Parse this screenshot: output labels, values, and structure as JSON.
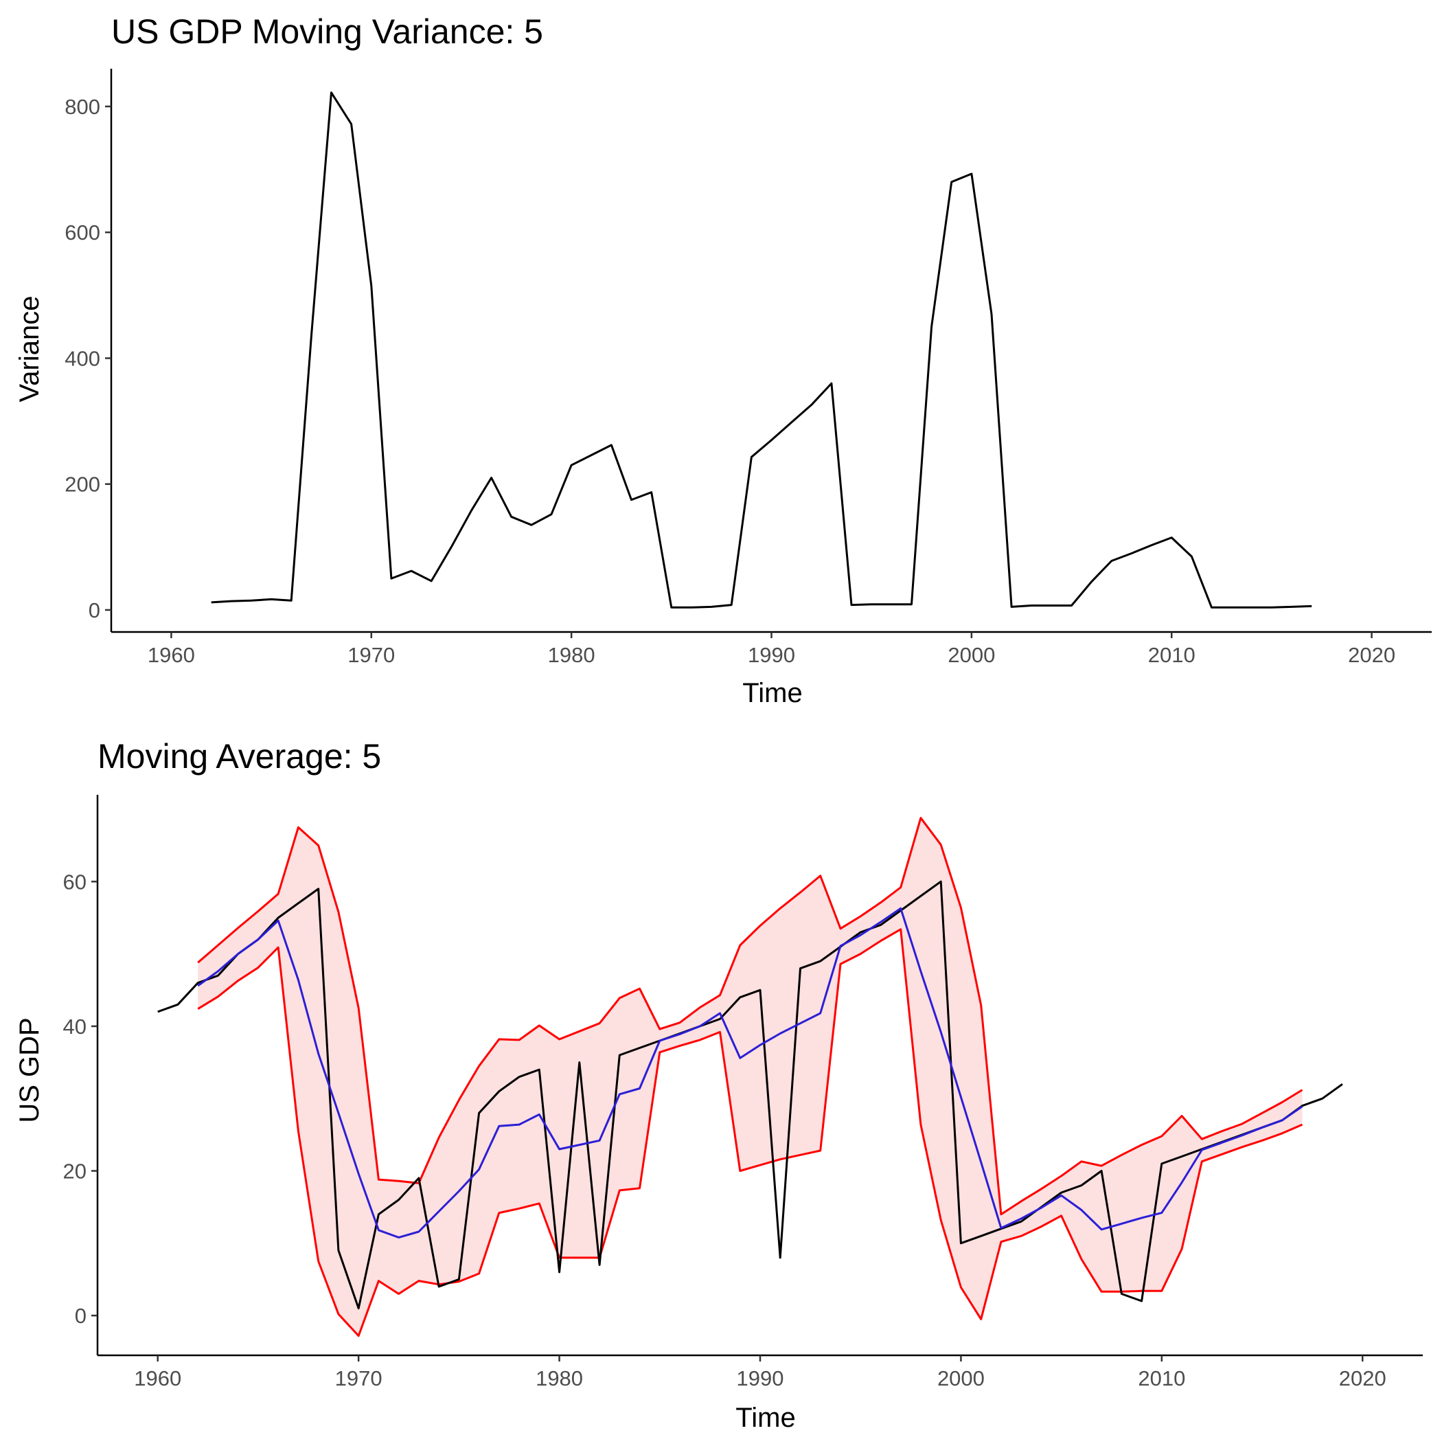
{
  "chart_data": [
    {
      "type": "line",
      "title": "US GDP Moving Variance: 5",
      "xlabel": "Time",
      "ylabel": "Variance",
      "xlim": [
        1957,
        2023
      ],
      "ylim": [
        -35,
        860
      ],
      "xticks": [
        1960,
        1970,
        1980,
        1990,
        2000,
        2010,
        2020
      ],
      "yticks": [
        0,
        200,
        400,
        600,
        800
      ],
      "grid": false,
      "series": [
        {
          "color": "#000000",
          "x": [
            1962,
            1963,
            1964,
            1965,
            1966,
            1967,
            1968,
            1969,
            1970,
            1971,
            1972,
            1973,
            1974,
            1975,
            1976,
            1977,
            1978,
            1979,
            1980,
            1981,
            1982,
            1983,
            1984,
            1985,
            1986,
            1987,
            1988,
            1989,
            1990,
            1991,
            1992,
            1993,
            1994,
            1995,
            1996,
            1997,
            1998,
            1999,
            2000,
            2001,
            2002,
            2003,
            2004,
            2005,
            2006,
            2007,
            2008,
            2009,
            2010,
            2011,
            2012,
            2013,
            2014,
            2015,
            2016,
            2017
          ],
          "y": [
            12,
            14,
            15,
            17,
            15,
            435,
            822,
            772,
            515,
            50,
            62,
            46,
            100,
            158,
            210,
            148,
            135,
            152,
            230,
            246,
            262,
            175,
            187,
            4,
            4,
            5,
            8,
            243,
            270,
            298,
            326,
            360,
            8,
            9,
            9,
            9,
            450,
            680,
            693,
            470,
            5,
            7,
            7,
            7,
            45,
            78,
            90,
            103,
            115,
            85,
            4,
            4,
            4,
            4,
            5,
            6
          ]
        }
      ]
    },
    {
      "type": "line",
      "title": "Moving Average: 5",
      "xlabel": "Time",
      "ylabel": "US GDP",
      "xlim": [
        1957,
        2023
      ],
      "ylim": [
        -5.5,
        72
      ],
      "xticks": [
        1960,
        1970,
        1980,
        1990,
        2000,
        2010,
        2020
      ],
      "yticks": [
        0,
        20,
        40,
        60
      ],
      "grid": false,
      "band": {
        "fill": "#fde0e0",
        "stroke": "#ff0000",
        "x": [
          1962,
          1963,
          1964,
          1965,
          1966,
          1967,
          1968,
          1969,
          1970,
          1971,
          1972,
          1973,
          1974,
          1975,
          1976,
          1977,
          1978,
          1979,
          1980,
          1981,
          1982,
          1983,
          1984,
          1985,
          1986,
          1987,
          1988,
          1989,
          1990,
          1991,
          1992,
          1993,
          1994,
          1995,
          1996,
          1997,
          1998,
          1999,
          2000,
          2001,
          2002,
          2003,
          2004,
          2005,
          2006,
          2007,
          2008,
          2009,
          2010,
          2011,
          2012,
          2013,
          2014,
          2015,
          2016,
          2017
        ],
        "upper": [
          48.8,
          51.2,
          53.6,
          55.9,
          58.3,
          67.5,
          65,
          55.8,
          42.5,
          18.8,
          18.6,
          18.3,
          24.6,
          29.8,
          34.5,
          38.2,
          38.1,
          40.1,
          38.2,
          39.3,
          40.4,
          43.9,
          45.2,
          39.6,
          40.5,
          42.6,
          44.3,
          51.2,
          53.9,
          56.3,
          58.5,
          60.8,
          53.5,
          55.2,
          57.1,
          59.2,
          68.8,
          65.1,
          56.4,
          42.9,
          14,
          15.8,
          17.5,
          19.3,
          21.3,
          20.7,
          22.2,
          23.6,
          24.8,
          27.6,
          24.4,
          25.5,
          26.5,
          28,
          29.5,
          31.2
        ],
        "lower": [
          42.4,
          44.1,
          46.3,
          48.1,
          50.9,
          25.5,
          7.5,
          0.2,
          -2.8,
          4.8,
          3,
          4.8,
          4.3,
          4.7,
          5.8,
          14.2,
          14.8,
          15.5,
          8,
          8,
          8,
          17.3,
          17.6,
          36.4,
          37.3,
          38.1,
          39.2,
          20,
          20.8,
          21.6,
          22.2,
          22.8,
          48.6,
          50,
          51.8,
          53.4,
          26.4,
          13.2,
          3.9,
          -0.5,
          10.2,
          11,
          12.3,
          13.8,
          7.8,
          3.3,
          3.3,
          3.4,
          3.4,
          9.2,
          21.3,
          22.3,
          23.3,
          24.2,
          25.2,
          26.4
        ]
      },
      "series": [
        {
          "color": "#000000",
          "x": [
            1960,
            1961,
            1962,
            1963,
            1964,
            1965,
            1966,
            1967,
            1968,
            1969,
            1970,
            1971,
            1972,
            1973,
            1974,
            1975,
            1976,
            1977,
            1978,
            1979,
            1980,
            1981,
            1982,
            1983,
            1984,
            1985,
            1986,
            1987,
            1988,
            1989,
            1990,
            1991,
            1992,
            1993,
            1994,
            1995,
            1996,
            1997,
            1998,
            1999,
            2000,
            2001,
            2002,
            2003,
            2004,
            2005,
            2006,
            2007,
            2008,
            2009,
            2010,
            2011,
            2012,
            2013,
            2014,
            2015,
            2016,
            2017,
            2018,
            2019
          ],
          "y": [
            42,
            43,
            46,
            47,
            50,
            52,
            55,
            57,
            59,
            9,
            1,
            14,
            16,
            19,
            4,
            5,
            28,
            31,
            33,
            34,
            6,
            35,
            7,
            36,
            37,
            38,
            39,
            40,
            41,
            44,
            45,
            8,
            48,
            49,
            51,
            53,
            54,
            56,
            58,
            60,
            10,
            11,
            12,
            13,
            15,
            17,
            18,
            20,
            3,
            2,
            21,
            22,
            23,
            24,
            25,
            26,
            27,
            29,
            30,
            32
          ]
        },
        {
          "color": "#2b1fd6",
          "x": [
            1962,
            1963,
            1964,
            1965,
            1966,
            1967,
            1968,
            1969,
            1970,
            1971,
            1972,
            1973,
            1974,
            1975,
            1976,
            1977,
            1978,
            1979,
            1980,
            1981,
            1982,
            1983,
            1984,
            1985,
            1986,
            1987,
            1988,
            1989,
            1990,
            1991,
            1992,
            1993,
            1994,
            1995,
            1996,
            1997,
            1998,
            1999,
            2000,
            2001,
            2002,
            2003,
            2004,
            2005,
            2006,
            2007,
            2008,
            2009,
            2010,
            2011,
            2012,
            2013,
            2014,
            2015,
            2016,
            2017
          ],
          "y": [
            45.6,
            47.6,
            50,
            52,
            54.6,
            46.4,
            36.2,
            28,
            19.6,
            11.8,
            10.8,
            11.6,
            14.4,
            17.2,
            20.2,
            26.2,
            26.4,
            27.8,
            23,
            23.6,
            24.2,
            30.6,
            31.4,
            38,
            38.9,
            40,
            41.8,
            35.6,
            37.4,
            39,
            40.4,
            41.8,
            51.1,
            52.6,
            54.4,
            56.3,
            47.6,
            39.2,
            30.2,
            21.2,
            12.1,
            13.4,
            14.9,
            16.6,
            14.6,
            11.9,
            12.7,
            13.5,
            14.2,
            18.4,
            22.9,
            23.9,
            24.9,
            26,
            27,
            28.9
          ]
        }
      ]
    }
  ]
}
